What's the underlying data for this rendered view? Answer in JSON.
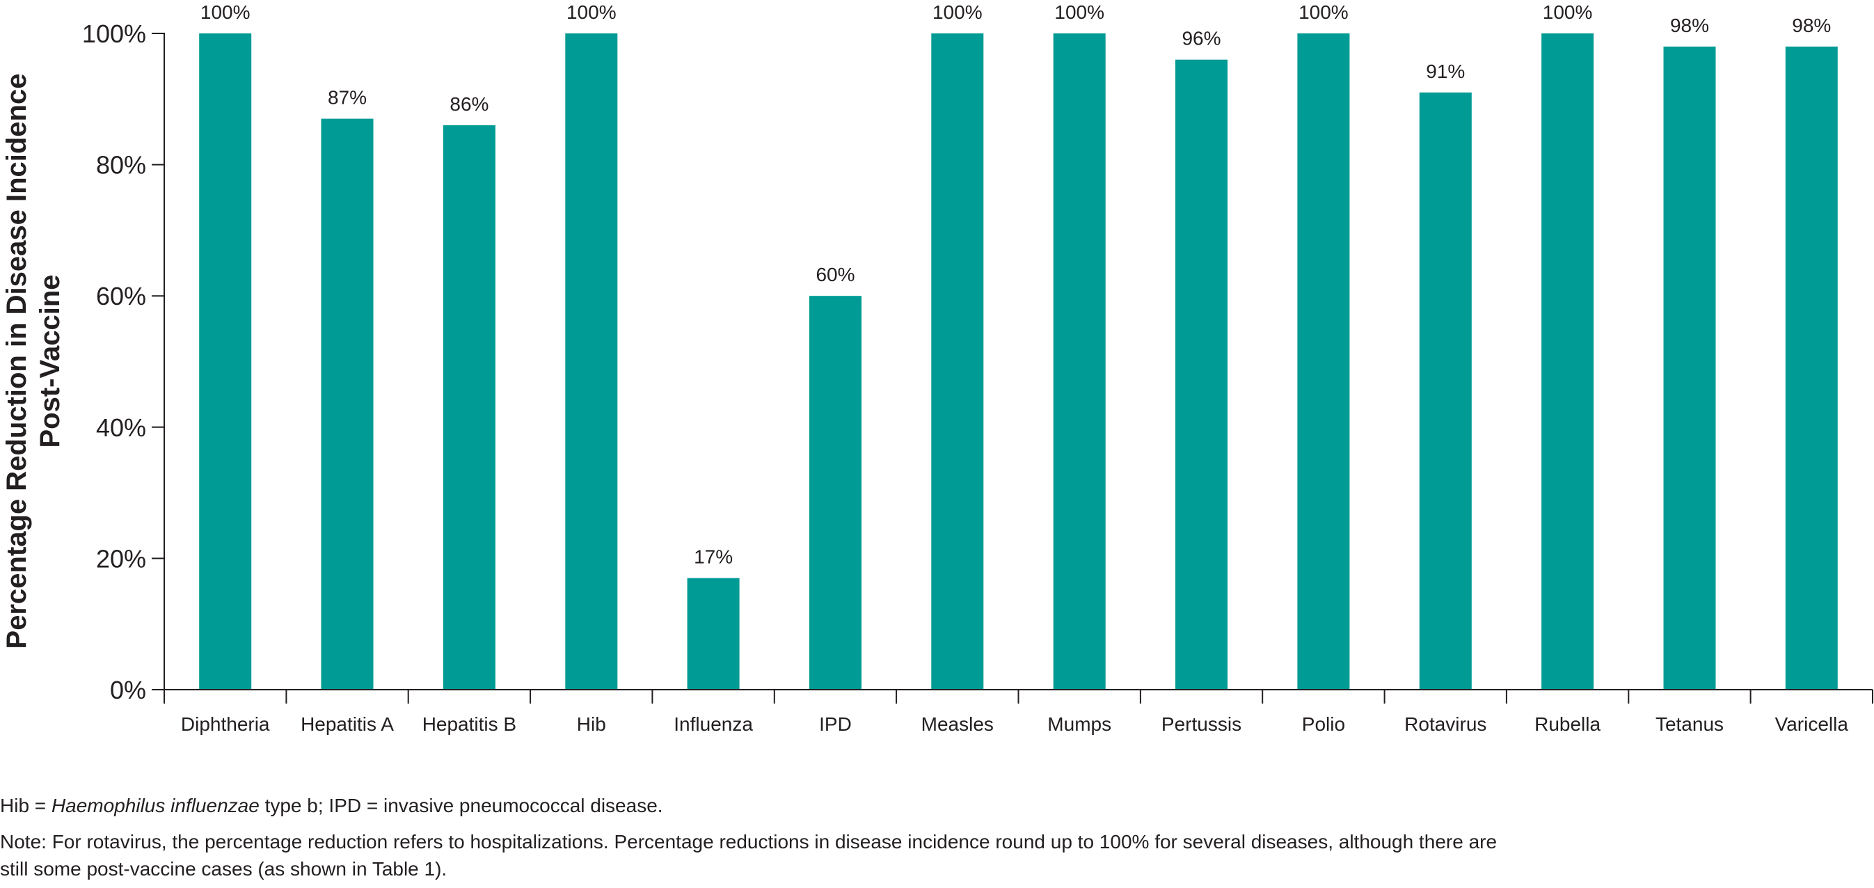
{
  "chart_data": {
    "type": "bar",
    "title": "",
    "xlabel": "",
    "ylabel": [
      "Percentage Reduction in Disease Incidence",
      "Post-Vaccine"
    ],
    "categories": [
      "Diphtheria",
      "Hepatitis A",
      "Hepatitis B",
      "Hib",
      "Influenza",
      "IPD",
      "Measles",
      "Mumps",
      "Pertussis",
      "Polio",
      "Rotavirus",
      "Rubella",
      "Tetanus",
      "Varicella"
    ],
    "values": [
      100,
      87,
      86,
      100,
      17,
      60,
      100,
      100,
      96,
      100,
      91,
      100,
      98,
      98
    ],
    "value_labels": [
      "100%",
      "87%",
      "86%",
      "100%",
      "17%",
      "60%",
      "100%",
      "100%",
      "96%",
      "100%",
      "91%",
      "100%",
      "98%",
      "98%"
    ],
    "ylim": [
      0,
      100
    ],
    "yticks": [
      0,
      20,
      40,
      60,
      80,
      100
    ],
    "ytick_labels": [
      "0%",
      "20%",
      "40%",
      "60%",
      "80%",
      "100%"
    ],
    "grid": false,
    "legend": "none",
    "bar_color": "#009b94",
    "axis_color": "#231f20"
  },
  "footnotes": {
    "abbrev_prefix": "Hib = ",
    "abbrev_italic": "Haemophilus influenzae",
    "abbrev_suffix": " type b; IPD = invasive pneumococcal disease.",
    "note": "Note: For rotavirus, the percentage reduction refers to hospitalizations. Percentage reductions in disease incidence round up to 100% for several diseases, although there are still some post-vaccine cases (as shown in Table 1)."
  }
}
